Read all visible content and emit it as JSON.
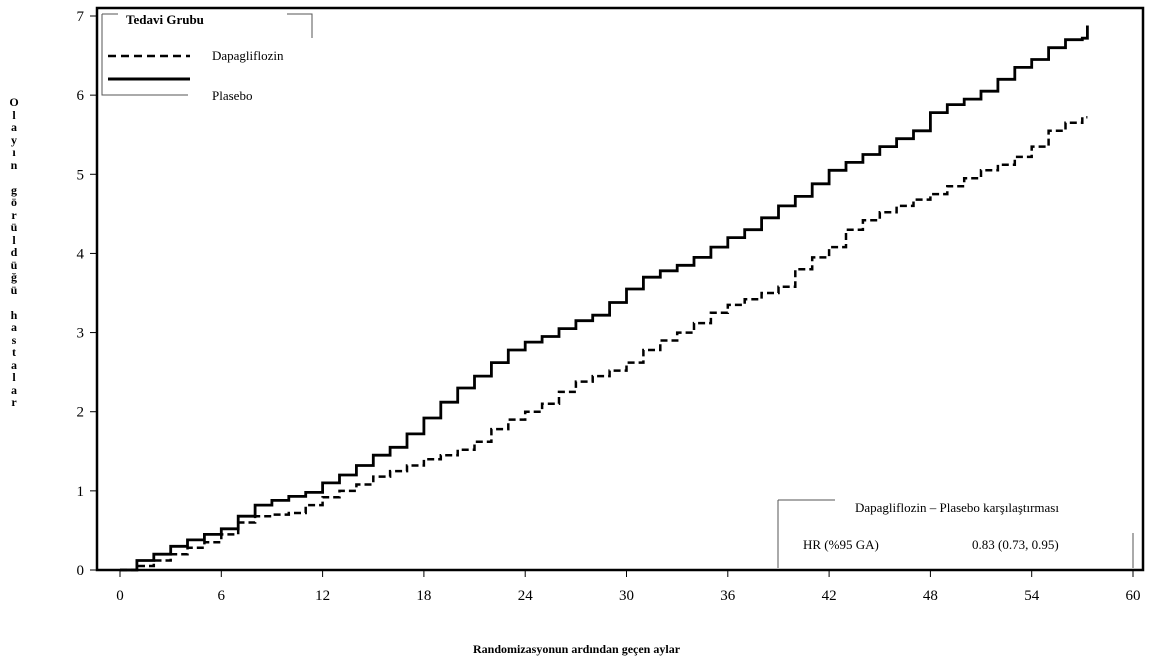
{
  "chart_data": {
    "type": "line",
    "xlabel": "Randomizasyonun ardından geçen aylar",
    "ylabel": "Olayın görüldüğü hastalar",
    "xlim": [
      0,
      60
    ],
    "ylim": [
      0,
      7
    ],
    "x_ticks": [
      "0",
      "6",
      "12",
      "18",
      "24",
      "30",
      "36",
      "42",
      "48",
      "54",
      "60"
    ],
    "y_ticks": [
      "0",
      "1",
      "2",
      "3",
      "4",
      "5",
      "6",
      "7"
    ],
    "grid": false,
    "legend": {
      "title": "Tedavi Grubu",
      "placement": "top-left",
      "entries": [
        {
          "label": "Dapagliflozin",
          "style": "dashed"
        },
        {
          "label": "Plasebo",
          "style": "solid"
        }
      ]
    },
    "annotation": {
      "title": "Dapagliflozin – Plasebo karşılaştırması",
      "row_label": "HR (%95 GA)",
      "row_value": "0.83 (0.73, 0.95)"
    },
    "series": [
      {
        "name": "Plasebo",
        "style": "solid",
        "color": "#000000",
        "points": [
          [
            0,
            0
          ],
          [
            1,
            0.12
          ],
          [
            2,
            0.2
          ],
          [
            3,
            0.3
          ],
          [
            4,
            0.38
          ],
          [
            5,
            0.45
          ],
          [
            6,
            0.52
          ],
          [
            7,
            0.68
          ],
          [
            8,
            0.82
          ],
          [
            9,
            0.88
          ],
          [
            10,
            0.93
          ],
          [
            11,
            0.98
          ],
          [
            12,
            1.1
          ],
          [
            13,
            1.2
          ],
          [
            14,
            1.32
          ],
          [
            15,
            1.45
          ],
          [
            16,
            1.55
          ],
          [
            17,
            1.72
          ],
          [
            18,
            1.92
          ],
          [
            19,
            2.12
          ],
          [
            20,
            2.3
          ],
          [
            21,
            2.45
          ],
          [
            22,
            2.62
          ],
          [
            23,
            2.78
          ],
          [
            24,
            2.88
          ],
          [
            25,
            2.95
          ],
          [
            26,
            3.05
          ],
          [
            27,
            3.15
          ],
          [
            28,
            3.22
          ],
          [
            29,
            3.38
          ],
          [
            30,
            3.55
          ],
          [
            31,
            3.7
          ],
          [
            32,
            3.78
          ],
          [
            33,
            3.85
          ],
          [
            34,
            3.95
          ],
          [
            35,
            4.08
          ],
          [
            36,
            4.2
          ],
          [
            37,
            4.3
          ],
          [
            38,
            4.45
          ],
          [
            39,
            4.6
          ],
          [
            40,
            4.72
          ],
          [
            41,
            4.88
          ],
          [
            42,
            5.05
          ],
          [
            43,
            5.15
          ],
          [
            44,
            5.25
          ],
          [
            45,
            5.35
          ],
          [
            46,
            5.45
          ],
          [
            47,
            5.55
          ],
          [
            48,
            5.78
          ],
          [
            49,
            5.88
          ],
          [
            50,
            5.95
          ],
          [
            51,
            6.05
          ],
          [
            52,
            6.2
          ],
          [
            53,
            6.35
          ],
          [
            54,
            6.45
          ],
          [
            55,
            6.6
          ],
          [
            56,
            6.7
          ],
          [
            57,
            6.72
          ],
          [
            57.3,
            6.88
          ]
        ]
      },
      {
        "name": "Dapagliflozin",
        "style": "dashed",
        "color": "#000000",
        "points": [
          [
            0,
            0
          ],
          [
            1,
            0.05
          ],
          [
            2,
            0.12
          ],
          [
            3,
            0.2
          ],
          [
            4,
            0.28
          ],
          [
            5,
            0.35
          ],
          [
            6,
            0.45
          ],
          [
            7,
            0.6
          ],
          [
            8,
            0.68
          ],
          [
            9,
            0.7
          ],
          [
            10,
            0.72
          ],
          [
            11,
            0.82
          ],
          [
            12,
            0.92
          ],
          [
            13,
            1.0
          ],
          [
            14,
            1.08
          ],
          [
            15,
            1.18
          ],
          [
            16,
            1.25
          ],
          [
            17,
            1.32
          ],
          [
            18,
            1.4
          ],
          [
            19,
            1.45
          ],
          [
            20,
            1.52
          ],
          [
            21,
            1.62
          ],
          [
            22,
            1.78
          ],
          [
            23,
            1.9
          ],
          [
            24,
            2.0
          ],
          [
            25,
            2.1
          ],
          [
            26,
            2.25
          ],
          [
            27,
            2.38
          ],
          [
            28,
            2.45
          ],
          [
            29,
            2.52
          ],
          [
            30,
            2.62
          ],
          [
            31,
            2.78
          ],
          [
            32,
            2.9
          ],
          [
            33,
            3.0
          ],
          [
            34,
            3.12
          ],
          [
            35,
            3.25
          ],
          [
            36,
            3.35
          ],
          [
            37,
            3.42
          ],
          [
            38,
            3.5
          ],
          [
            39,
            3.58
          ],
          [
            40,
            3.8
          ],
          [
            41,
            3.95
          ],
          [
            42,
            4.08
          ],
          [
            43,
            4.3
          ],
          [
            44,
            4.42
          ],
          [
            45,
            4.52
          ],
          [
            46,
            4.6
          ],
          [
            47,
            4.68
          ],
          [
            48,
            4.75
          ],
          [
            49,
            4.85
          ],
          [
            50,
            4.95
          ],
          [
            51,
            5.05
          ],
          [
            52,
            5.12
          ],
          [
            53,
            5.22
          ],
          [
            54,
            5.35
          ],
          [
            55,
            5.55
          ],
          [
            56,
            5.65
          ],
          [
            57,
            5.72
          ],
          [
            57.3,
            5.72
          ]
        ]
      }
    ]
  }
}
